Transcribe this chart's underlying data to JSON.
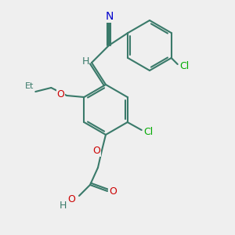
{
  "bg_color": "#efefef",
  "bond_color": "#3a7a6a",
  "bond_width": 1.5,
  "atom_colors": {
    "C": "#3a7a6a",
    "N": "#0000cc",
    "O": "#cc0000",
    "Cl": "#00aa00",
    "H": "#3a7a6a"
  },
  "font_size": 9,
  "font_size_small": 8
}
